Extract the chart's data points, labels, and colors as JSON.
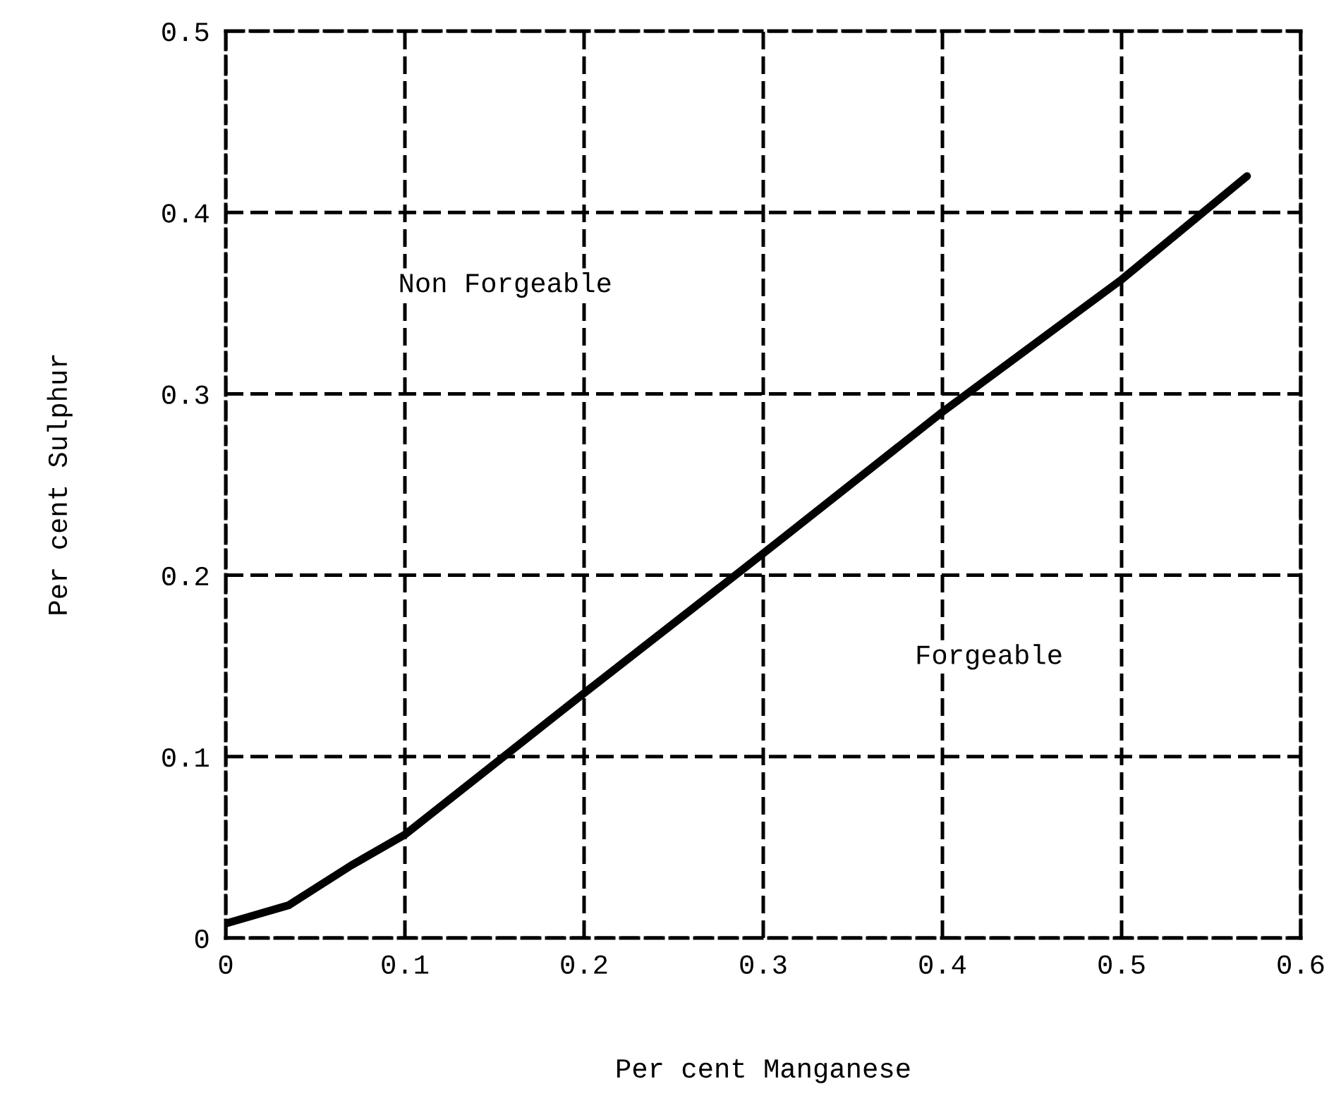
{
  "chart_data": {
    "type": "line",
    "xlabel": "Per cent Manganese",
    "ylabel": "Per cent Sulphur",
    "x": [
      0,
      0.035,
      0.07,
      0.1,
      0.2,
      0.3,
      0.4,
      0.5,
      0.57
    ],
    "series": [
      {
        "color": "#000000",
        "values": [
          0.008,
          0.018,
          0.04,
          0.057,
          0.135,
          0.212,
          0.29,
          0.363,
          0.42
        ]
      }
    ],
    "xlim": [
      0,
      0.6
    ],
    "ylim": [
      0,
      0.5
    ],
    "xticks": [
      0,
      0.1,
      0.2,
      0.3,
      0.4,
      0.5,
      0.6
    ],
    "yticks": [
      0,
      0.1,
      0.2,
      0.3,
      0.4,
      0.5
    ],
    "grid": true,
    "line_style": "solid",
    "marker": "none",
    "annotations": [
      "Non Forgeable",
      "Forgeable"
    ]
  }
}
